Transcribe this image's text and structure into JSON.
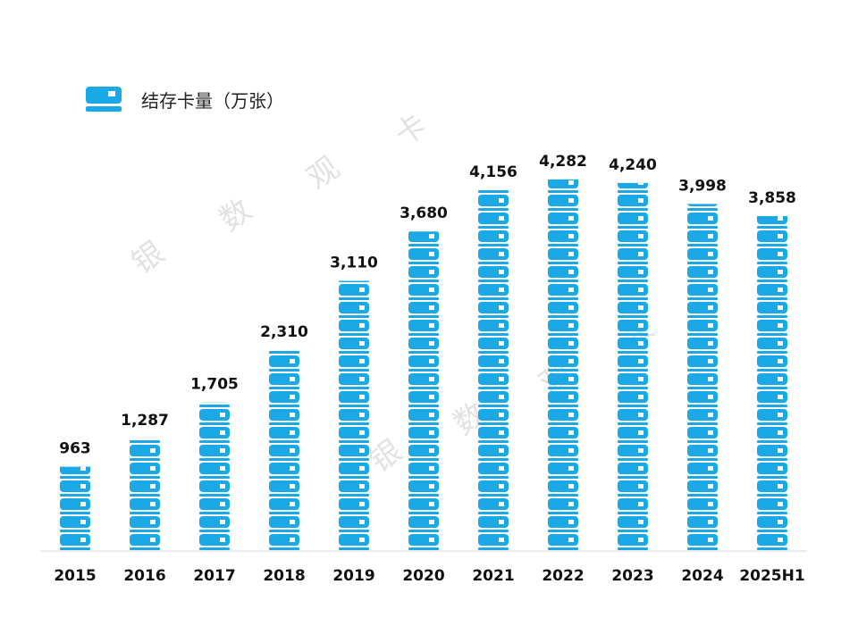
{
  "chart_data": {
    "type": "bar",
    "categories": [
      "2015",
      "2016",
      "2017",
      "2018",
      "2019",
      "2020",
      "2021",
      "2022",
      "2023",
      "2024",
      "2025H1"
    ],
    "series": [
      {
        "name": "结存卡量（万张）",
        "values": [
          963,
          1287,
          1705,
          2310,
          3110,
          3680,
          4156,
          4282,
          4240,
          3998,
          3858
        ]
      }
    ],
    "data_labels": [
      "963",
      "1,287",
      "1,705",
      "2,310",
      "3,110",
      "3,680",
      "4,156",
      "4,282",
      "4,240",
      "3,998",
      "3,858"
    ],
    "ylim": [
      0,
      4600
    ],
    "grid": false,
    "legend_position": "top-left",
    "bar_color": "#1aa9e6"
  },
  "watermark": [
    "银",
    "数",
    "观",
    "卡"
  ]
}
